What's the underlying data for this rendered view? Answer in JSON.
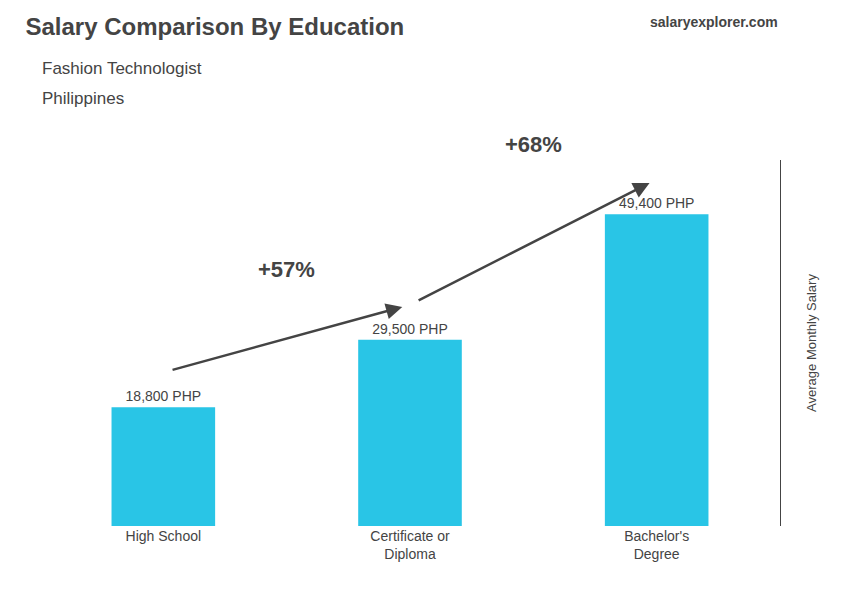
{
  "chart_data": {
    "type": "bar",
    "title": "Salary Comparison By Education",
    "subtitle": [
      "Fashion Technologist",
      "Philippines"
    ],
    "ylabel": "Average Monthly Salary",
    "categories": [
      "High School",
      "Certificate or\nDiploma",
      "Bachelor's\nDegree"
    ],
    "values": [
      18800,
      29500,
      49400
    ],
    "value_labels": [
      "18,800 PHP",
      "29,500 PHP",
      "49,400 PHP"
    ],
    "data_labels": true,
    "color": "#29c5e6",
    "ylim": [
      0,
      58000
    ],
    "grid": false,
    "tick_labels": "x",
    "annotations": [
      {
        "text": "salaryexplorer.com"
      },
      {
        "text": "+57%",
        "from": "High School",
        "to": "Certificate or\nDiploma"
      },
      {
        "text": "+68%",
        "from": "Certificate or\nDiploma",
        "to": "Bachelor's\nDegree"
      }
    ]
  }
}
